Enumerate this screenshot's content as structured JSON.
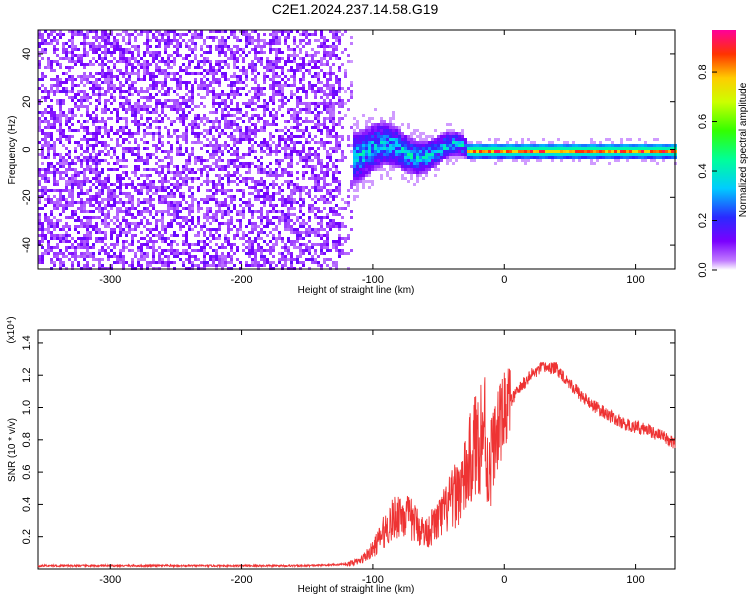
{
  "page": {
    "title": "C2E1.2024.237.14.58.G19"
  },
  "chart_data": [
    {
      "type": "heatmap",
      "title": "C2E1.2024.237.14.58.G19",
      "xlabel": "Height of straight line (km)",
      "ylabel": "Frequency (Hz)",
      "xlim": [
        -355,
        130
      ],
      "ylim": [
        -50,
        50
      ],
      "xticks": [
        -300,
        -200,
        -100,
        0,
        100
      ],
      "xtick_labels": [
        "-300",
        "-200",
        "-100",
        "0",
        "100"
      ],
      "yticks": [
        -40,
        -20,
        0,
        20,
        40
      ],
      "ytick_labels": [
        "-40",
        "-20",
        "0",
        "20",
        "40"
      ],
      "colorbar": {
        "label": "Normalized spectral amplitude",
        "range": [
          0,
          0.97
        ],
        "ticks": [
          0.0,
          0.2,
          0.4,
          0.6,
          0.8
        ],
        "tick_labels": [
          "0.0",
          "0.2",
          "0.4",
          "0.6",
          "0.8"
        ]
      },
      "regions": [
        {
          "x": [
            -355,
            -125
          ],
          "freq_range": [
            -50,
            50
          ],
          "amplitude": [
            0.0,
            0.12
          ],
          "pattern": "broadband noise"
        },
        {
          "x": [
            -125,
            -30
          ],
          "freq_center": 0,
          "freq_spread": [
            -10,
            15
          ],
          "amplitude": [
            0.1,
            0.35
          ],
          "pattern": "scattered signal"
        },
        {
          "x": [
            -30,
            130
          ],
          "freq_center": 0,
          "freq_spread": [
            -3,
            3
          ],
          "amplitude": [
            0.4,
            0.95
          ],
          "pattern": "narrow carrier line"
        }
      ]
    },
    {
      "type": "line",
      "xlabel": "Height of straight line (km)",
      "ylabel": "SNR (10 * v/v)",
      "y_multiplier": "(x10⁴)",
      "xlim": [
        -355,
        130
      ],
      "ylim": [
        0,
        1.48
      ],
      "xticks": [
        -300,
        -200,
        -100,
        0,
        100
      ],
      "xtick_labels": [
        "-300",
        "-200",
        "-100",
        "0",
        "100"
      ],
      "yticks": [
        0.2,
        0.4,
        0.6,
        0.8,
        1.0,
        1.2,
        1.4
      ],
      "ytick_labels": [
        "0.2",
        "0.4",
        "0.6",
        "0.8",
        "1.0",
        "1.2",
        "1.4"
      ],
      "series": [
        {
          "color": "#ee3333",
          "x": [
            -355,
            -300,
            -250,
            -200,
            -150,
            -120,
            -110,
            -100,
            -90,
            -80,
            -70,
            -60,
            -50,
            -40,
            -30,
            -25,
            -20,
            -15,
            -12,
            -10,
            -5,
            0,
            10,
            20,
            30,
            40,
            50,
            60,
            70,
            80,
            90,
            100,
            110,
            120,
            130
          ],
          "y": [
            0.02,
            0.02,
            0.02,
            0.02,
            0.02,
            0.03,
            0.05,
            0.12,
            0.25,
            0.35,
            0.3,
            0.22,
            0.3,
            0.42,
            0.55,
            0.7,
            0.8,
            0.9,
            0.55,
            0.72,
            0.85,
            0.98,
            1.1,
            1.2,
            1.25,
            1.24,
            1.15,
            1.06,
            1.0,
            0.95,
            0.9,
            0.88,
            0.86,
            0.82,
            0.78
          ]
        }
      ]
    }
  ]
}
